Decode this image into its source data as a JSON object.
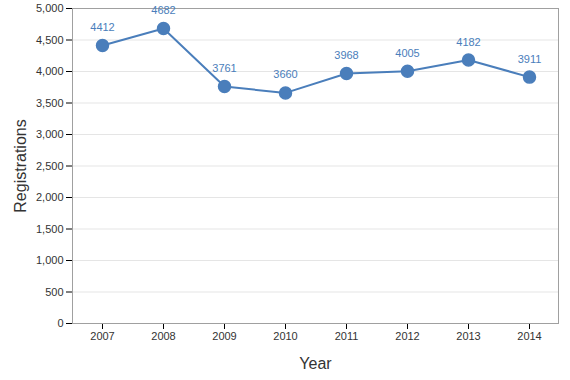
{
  "chart_data": {
    "type": "line",
    "x_label": "Year",
    "y_label": "Registrations",
    "categories": [
      "2007",
      "2008",
      "2009",
      "2010",
      "2011",
      "2012",
      "2013",
      "2014"
    ],
    "values": [
      4412,
      4682,
      3761,
      3660,
      3968,
      4005,
      4182,
      3911
    ],
    "color": "#4a7ebb",
    "marker": "circle",
    "data_labels": true,
    "ylim": [
      0,
      5000
    ],
    "yticks": [
      0,
      500,
      1000,
      1500,
      2000,
      2500,
      3000,
      3500,
      4000,
      4500,
      5000
    ],
    "grid": true
  }
}
